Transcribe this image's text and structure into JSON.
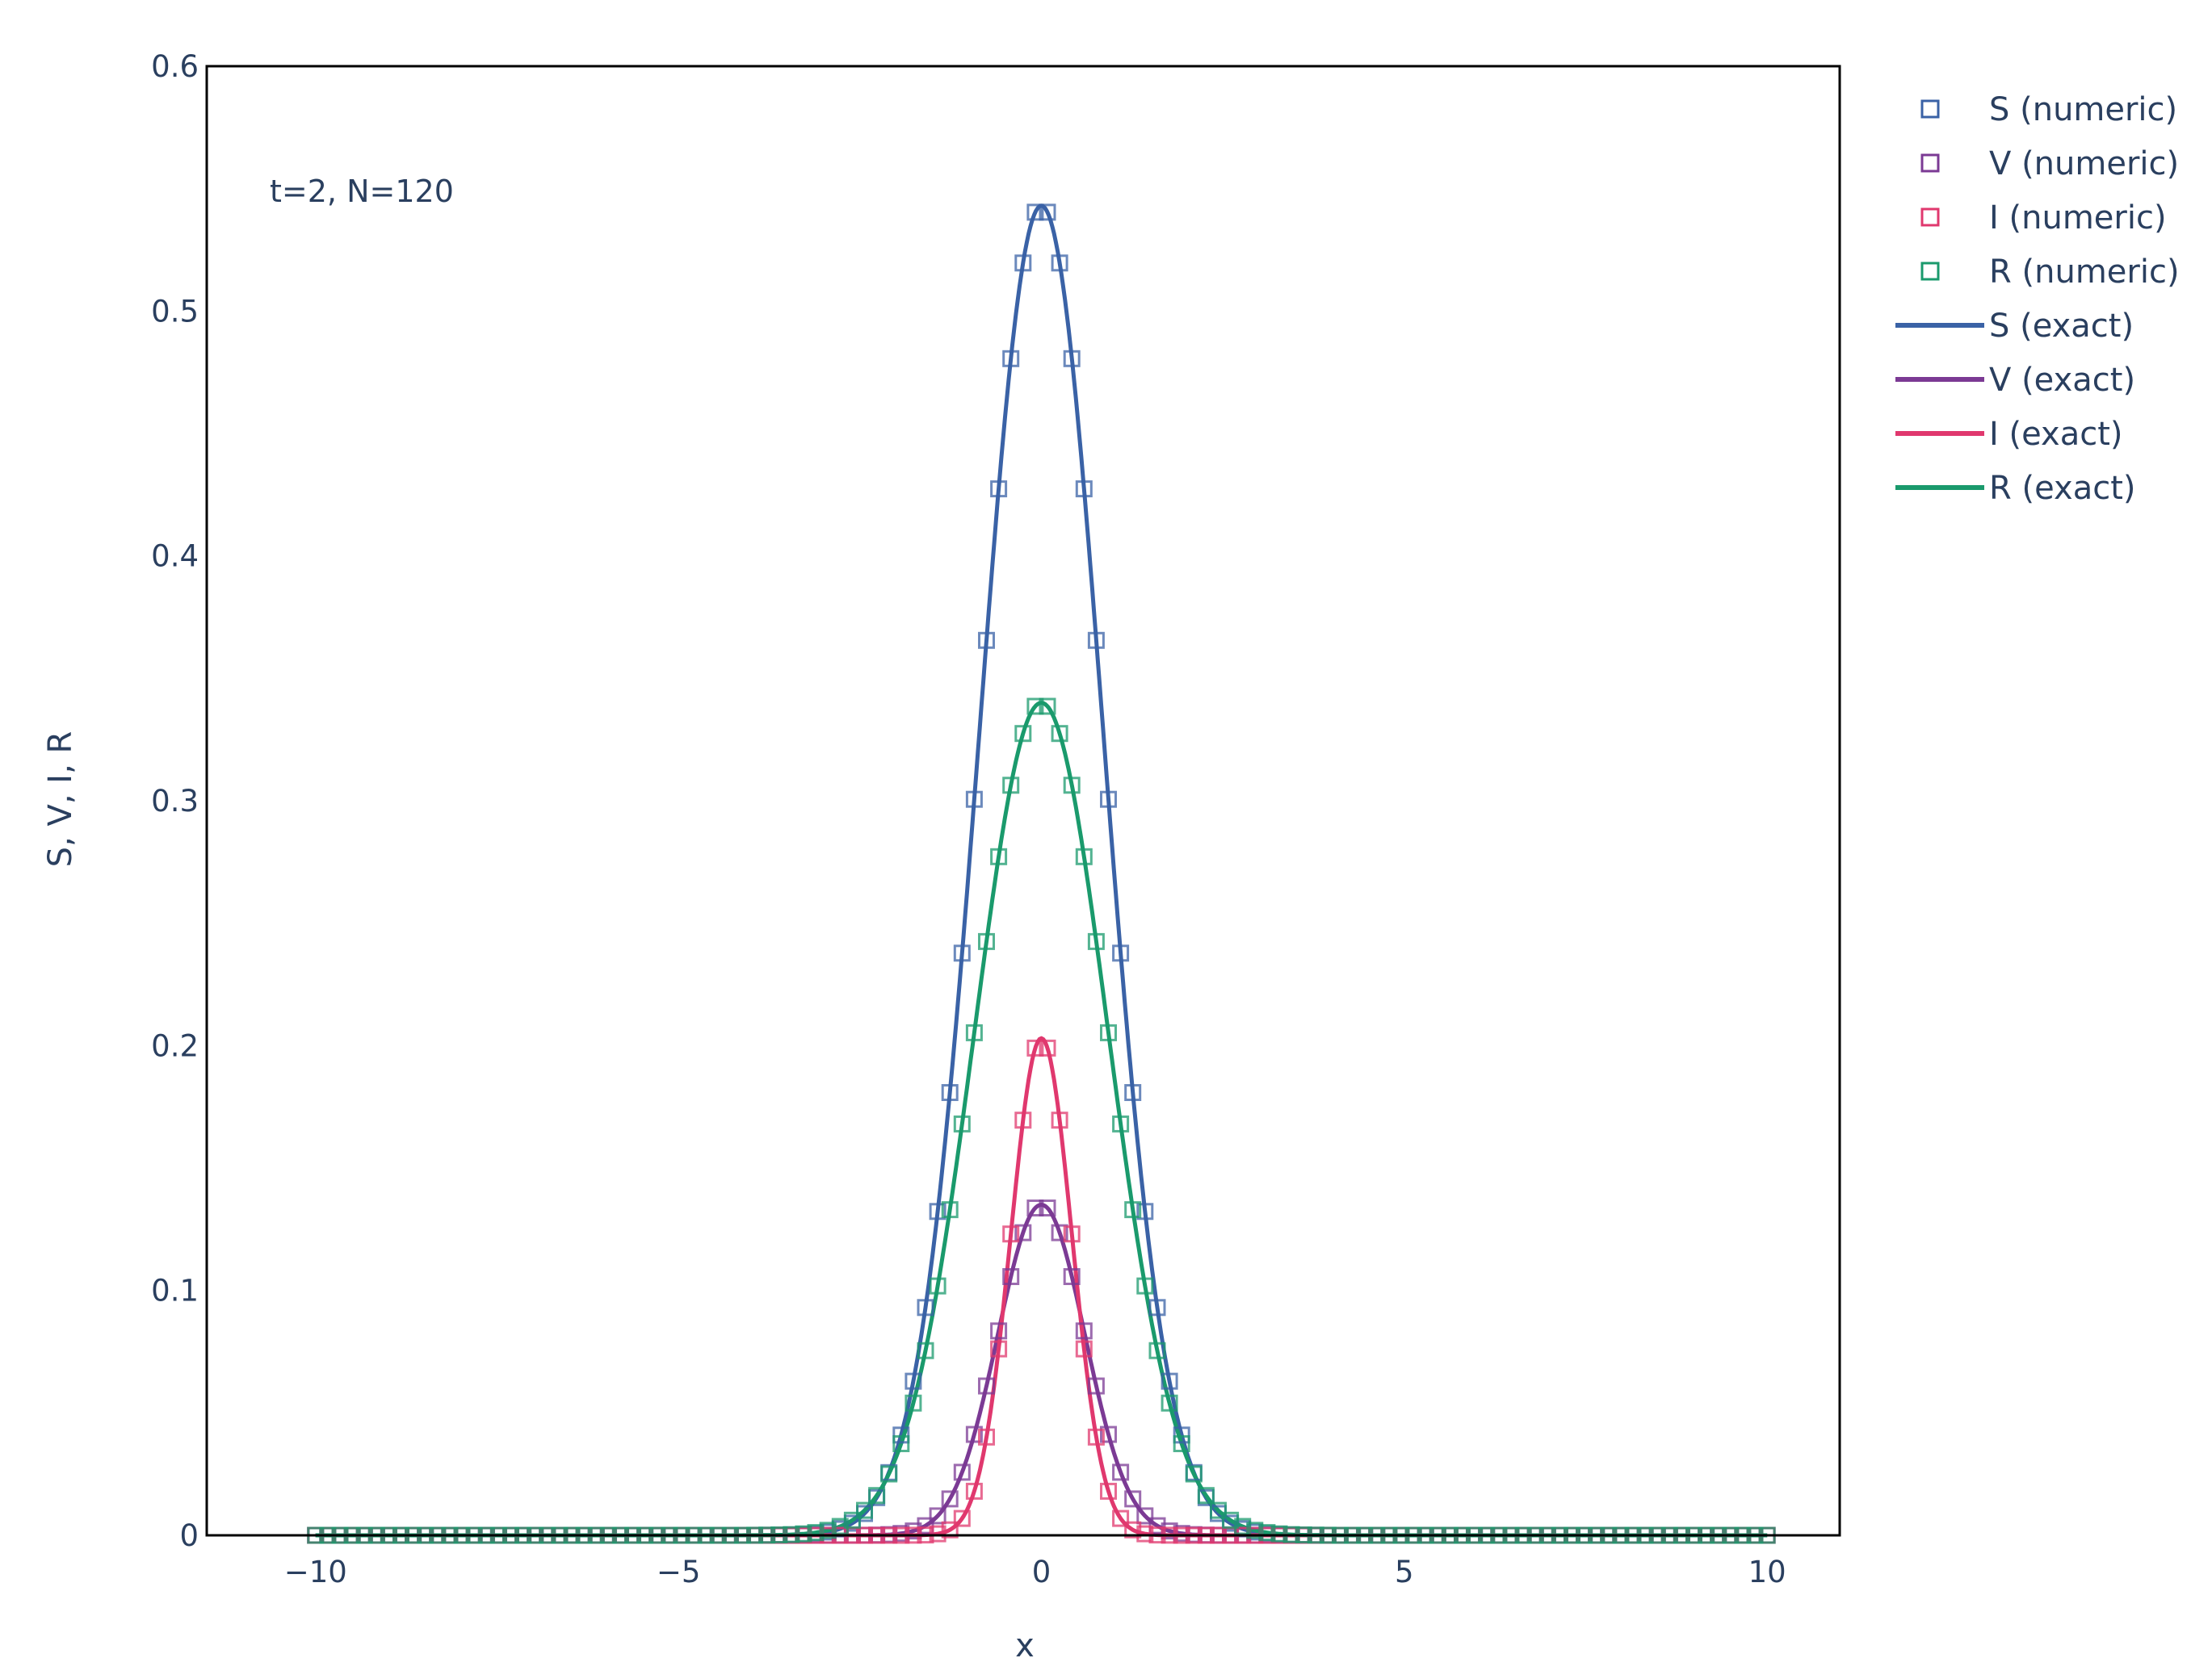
{
  "chart_data": {
    "type": "line",
    "annotation": "t=2, N=120",
    "xlabel": "x",
    "ylabel": "S, V, I, R",
    "xlim": [
      -11.5,
      11.0
    ],
    "ylim": [
      0,
      0.6
    ],
    "x_ticks": [
      -10,
      -5,
      0,
      5,
      10
    ],
    "x_tick_labels": [
      "−10",
      "−5",
      "0",
      "5",
      "10"
    ],
    "y_ticks": [
      0,
      0.1,
      0.2,
      0.3,
      0.4,
      0.5,
      0.6
    ],
    "y_tick_labels": [
      "0",
      "0.1",
      "0.2",
      "0.3",
      "0.4",
      "0.5",
      "0.6"
    ],
    "grid": false,
    "legend_position": "right",
    "x_range": [
      -10,
      10
    ],
    "n_points": 120,
    "series": [
      {
        "name": "S (numeric)",
        "style": "markers",
        "marker": "square-open",
        "color": "#3a62a6",
        "peak": 0.543,
        "width": 0.85
      },
      {
        "name": "V (numeric)",
        "style": "markers",
        "marker": "square-open",
        "color": "#7b3a94",
        "peak": 0.135,
        "width": 0.6
      },
      {
        "name": "I (numeric)",
        "style": "markers",
        "marker": "square-open",
        "color": "#e0386e",
        "peak": 0.203,
        "width": 0.42
      },
      {
        "name": "R (numeric)",
        "style": "markers",
        "marker": "square-open",
        "color": "#1a9a6c",
        "peak": 0.34,
        "width": 0.92
      },
      {
        "name": "S (exact)",
        "style": "line",
        "color": "#3a62a6",
        "peak": 0.543,
        "width": 0.85
      },
      {
        "name": "V (exact)",
        "style": "line",
        "color": "#7b3a94",
        "peak": 0.135,
        "width": 0.6
      },
      {
        "name": "I (exact)",
        "style": "line",
        "color": "#e0386e",
        "peak": 0.203,
        "width": 0.42
      },
      {
        "name": "R (exact)",
        "style": "line",
        "color": "#1a9a6c",
        "peak": 0.34,
        "width": 0.92
      }
    ]
  }
}
